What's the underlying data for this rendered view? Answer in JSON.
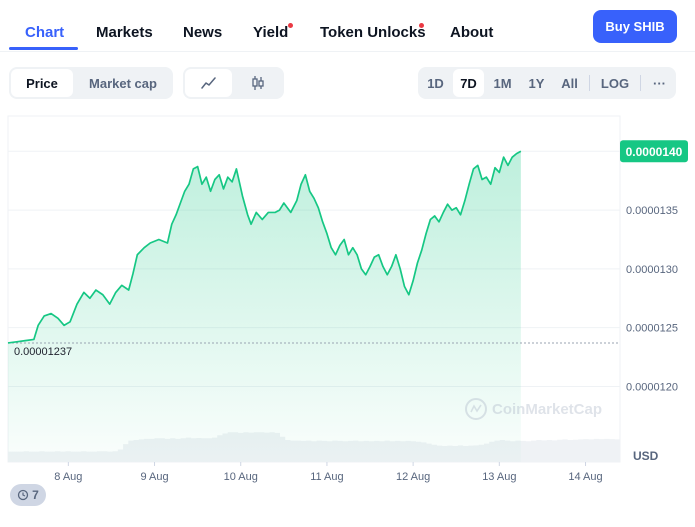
{
  "nav": {
    "tabs": [
      {
        "label": "Chart",
        "active": true
      },
      {
        "label": "Markets"
      },
      {
        "label": "News"
      },
      {
        "label": "Yield",
        "dot": true
      },
      {
        "label": "Token Unlocks",
        "dot": true
      },
      {
        "label": "About"
      }
    ],
    "buy_label": "Buy SHIB"
  },
  "controls": {
    "metric": [
      "Price",
      "Market cap"
    ],
    "metric_selected": "Price",
    "chart_style_icons": [
      "line-chart-icon",
      "candlestick-icon"
    ],
    "ranges": [
      "1D",
      "7D",
      "1M",
      "1Y",
      "All"
    ],
    "range_selected": "7D",
    "scale_label": "LOG",
    "more_label": "···"
  },
  "colors": {
    "accent": "#3861fb",
    "line": "#16c784",
    "price_tag_bg": "#16c784",
    "alert_dot": "#ea3943"
  },
  "chart_data": {
    "type": "area",
    "currency": "USD",
    "watermark": "CoinMarketCap",
    "current_price_label": "0.0000140",
    "open_price_label": "0.00001237",
    "y_ticks": [
      "0.0000140",
      "0.0000135",
      "0.0000130",
      "0.0000125",
      "0.0000120"
    ],
    "y_tick_values": [
      1.4e-05,
      1.35e-05,
      1.3e-05,
      1.25e-05,
      1.2e-05
    ],
    "x_ticks": [
      "8 Aug",
      "9 Aug",
      "10 Aug",
      "11 Aug",
      "12 Aug",
      "13 Aug",
      "14 Aug"
    ],
    "x_tick_values": [
      0.7,
      1.7,
      2.7,
      3.7,
      4.7,
      5.7,
      6.7
    ],
    "ylim": [
      1.18e-05,
      1.43e-05
    ],
    "xlim": [
      0,
      7.1
    ],
    "grid": true,
    "series": [
      {
        "values": [
          [
            0.0,
            1.237e-05
          ],
          [
            0.1,
            1.238e-05
          ],
          [
            0.2,
            1.239e-05
          ],
          [
            0.3,
            1.24e-05
          ],
          [
            0.35,
            1.252e-05
          ],
          [
            0.42,
            1.26e-05
          ],
          [
            0.5,
            1.262e-05
          ],
          [
            0.58,
            1.258e-05
          ],
          [
            0.65,
            1.252e-05
          ],
          [
            0.72,
            1.255e-05
          ],
          [
            0.8,
            1.27e-05
          ],
          [
            0.88,
            1.28e-05
          ],
          [
            0.95,
            1.275e-05
          ],
          [
            1.02,
            1.282e-05
          ],
          [
            1.1,
            1.278e-05
          ],
          [
            1.18,
            1.27e-05
          ],
          [
            1.25,
            1.28e-05
          ],
          [
            1.32,
            1.286e-05
          ],
          [
            1.4,
            1.282e-05
          ],
          [
            1.45,
            1.296e-05
          ],
          [
            1.5,
            1.312e-05
          ],
          [
            1.58,
            1.318e-05
          ],
          [
            1.65,
            1.322e-05
          ],
          [
            1.75,
            1.325e-05
          ],
          [
            1.85,
            1.322e-05
          ],
          [
            1.9,
            1.338e-05
          ],
          [
            1.95,
            1.346e-05
          ],
          [
            2.0,
            1.356e-05
          ],
          [
            2.05,
            1.366e-05
          ],
          [
            2.1,
            1.372e-05
          ],
          [
            2.15,
            1.385e-05
          ],
          [
            2.2,
            1.387e-05
          ],
          [
            2.25,
            1.372e-05
          ],
          [
            2.3,
            1.378e-05
          ],
          [
            2.35,
            1.366e-05
          ],
          [
            2.4,
            1.376e-05
          ],
          [
            2.45,
            1.38e-05
          ],
          [
            2.5,
            1.368e-05
          ],
          [
            2.55,
            1.378e-05
          ],
          [
            2.6,
            1.374e-05
          ],
          [
            2.65,
            1.385e-05
          ],
          [
            2.72,
            1.362e-05
          ],
          [
            2.78,
            1.346e-05
          ],
          [
            2.82,
            1.338e-05
          ],
          [
            2.88,
            1.348e-05
          ],
          [
            2.95,
            1.342e-05
          ],
          [
            3.02,
            1.348e-05
          ],
          [
            3.1,
            1.348e-05
          ],
          [
            3.15,
            1.35e-05
          ],
          [
            3.2,
            1.356e-05
          ],
          [
            3.28,
            1.348e-05
          ],
          [
            3.35,
            1.358e-05
          ],
          [
            3.4,
            1.372e-05
          ],
          [
            3.45,
            1.38e-05
          ],
          [
            3.5,
            1.366e-05
          ],
          [
            3.55,
            1.36e-05
          ],
          [
            3.6,
            1.352e-05
          ],
          [
            3.65,
            1.34e-05
          ],
          [
            3.7,
            1.33e-05
          ],
          [
            3.75,
            1.318e-05
          ],
          [
            3.8,
            1.312e-05
          ],
          [
            3.85,
            1.32e-05
          ],
          [
            3.9,
            1.325e-05
          ],
          [
            3.95,
            1.312e-05
          ],
          [
            4.0,
            1.318e-05
          ],
          [
            4.05,
            1.312e-05
          ],
          [
            4.1,
            1.3e-05
          ],
          [
            4.15,
            1.295e-05
          ],
          [
            4.2,
            1.302e-05
          ],
          [
            4.25,
            1.31e-05
          ],
          [
            4.3,
            1.312e-05
          ],
          [
            4.35,
            1.302e-05
          ],
          [
            4.4,
            1.295e-05
          ],
          [
            4.45,
            1.302e-05
          ],
          [
            4.5,
            1.312e-05
          ],
          [
            4.55,
            1.3e-05
          ],
          [
            4.6,
            1.285e-05
          ],
          [
            4.65,
            1.278e-05
          ],
          [
            4.7,
            1.29e-05
          ],
          [
            4.75,
            1.305e-05
          ],
          [
            4.8,
            1.316e-05
          ],
          [
            4.85,
            1.33e-05
          ],
          [
            4.9,
            1.342e-05
          ],
          [
            4.95,
            1.345e-05
          ],
          [
            5.0,
            1.34e-05
          ],
          [
            5.05,
            1.348e-05
          ],
          [
            5.1,
            1.355e-05
          ],
          [
            5.15,
            1.35e-05
          ],
          [
            5.2,
            1.352e-05
          ],
          [
            5.25,
            1.346e-05
          ],
          [
            5.3,
            1.358e-05
          ],
          [
            5.35,
            1.372e-05
          ],
          [
            5.4,
            1.385e-05
          ],
          [
            5.45,
            1.388e-05
          ],
          [
            5.5,
            1.376e-05
          ],
          [
            5.55,
            1.378e-05
          ],
          [
            5.6,
            1.372e-05
          ],
          [
            5.65,
            1.386e-05
          ],
          [
            5.7,
            1.382e-05
          ],
          [
            5.75,
            1.395e-05
          ],
          [
            5.8,
            1.388e-05
          ],
          [
            5.85,
            1.395e-05
          ],
          [
            5.9,
            1.398e-05
          ],
          [
            5.95,
            1.4e-05
          ]
        ]
      }
    ],
    "volume": [
      0.35,
      0.35,
      0.35,
      0.36,
      0.35,
      0.35,
      0.36,
      0.35,
      0.35,
      0.36,
      0.35,
      0.36,
      0.35,
      0.35,
      0.36,
      0.35,
      0.35,
      0.36,
      0.36,
      0.35,
      0.36,
      0.42,
      0.6,
      0.72,
      0.74,
      0.76,
      0.78,
      0.78,
      0.8,
      0.8,
      0.78,
      0.8,
      0.78,
      0.8,
      0.82,
      0.8,
      0.81,
      0.8,
      0.8,
      0.82,
      0.9,
      0.96,
      1.0,
      1.0,
      0.98,
      1.0,
      0.99,
      1.0,
      1.0,
      0.99,
      1.0,
      0.98,
      0.85,
      0.74,
      0.72,
      0.72,
      0.71,
      0.72,
      0.7,
      0.72,
      0.71,
      0.7,
      0.72,
      0.71,
      0.7,
      0.71,
      0.72,
      0.7,
      0.71,
      0.7,
      0.71,
      0.7,
      0.72,
      0.7,
      0.71,
      0.7,
      0.71,
      0.7,
      0.68,
      0.66,
      0.62,
      0.58,
      0.55,
      0.54,
      0.55,
      0.54,
      0.56,
      0.54,
      0.55,
      0.56,
      0.58,
      0.62,
      0.68,
      0.72,
      0.74,
      0.72,
      0.7,
      0.72,
      0.71,
      0.7,
      0.72,
      0.74,
      0.73,
      0.74,
      0.73,
      0.75,
      0.76,
      0.74,
      0.75,
      0.76,
      0.77,
      0.76,
      0.78,
      0.77,
      0.78,
      0.77,
      0.76
    ]
  },
  "footer": {
    "history_count": "7"
  }
}
